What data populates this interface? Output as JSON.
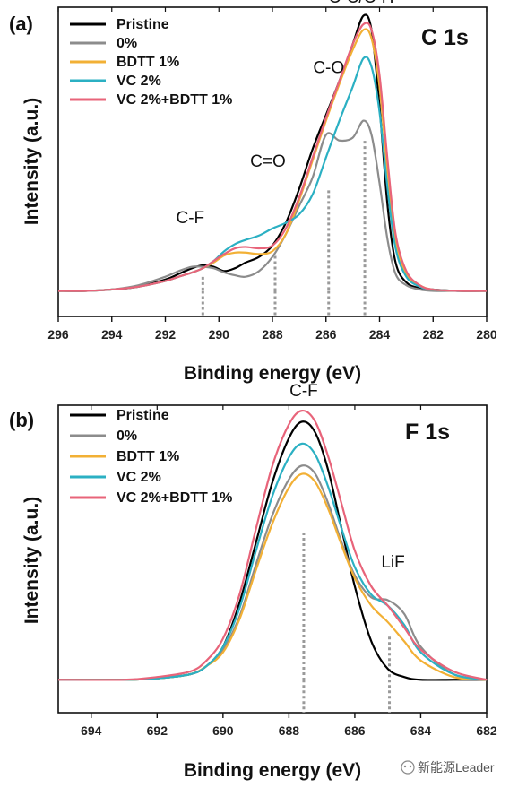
{
  "chart_data": [
    {
      "type": "line",
      "panel_label": "(a)",
      "title": "C 1s",
      "xlabel": "Binding energy (eV)",
      "ylabel": "Intensity (a.u.)",
      "xlim": [
        296,
        280
      ],
      "x_reversed": true,
      "ylim": [
        -0.09,
        1.0
      ],
      "xticks": [
        296,
        294,
        292,
        290,
        288,
        286,
        284,
        282,
        280
      ],
      "grid": false,
      "legend_position": "top-left",
      "annotations": [
        {
          "text": "C-F",
          "x": 290.6,
          "y": 0.2
        },
        {
          "text": "C=O",
          "x": 287.9,
          "y": 0.4
        },
        {
          "text": "C-O",
          "x": 285.9,
          "y": 0.73
        },
        {
          "text": "C-C/C-H",
          "x": 284.55,
          "y": 0.99
        }
      ],
      "reference_lines": [
        290.6,
        287.9,
        285.9,
        284.55
      ],
      "series": [
        {
          "name": "Pristine",
          "color": "#000000",
          "x": [
            296,
            295,
            294,
            293,
            292,
            291.5,
            291,
            290.6,
            290.2,
            289.8,
            289.4,
            289,
            288.5,
            288,
            287.5,
            287,
            286.5,
            286,
            285.5,
            285,
            284.6,
            284.3,
            284,
            283.7,
            283.4,
            283,
            282.5,
            282,
            281,
            280
          ],
          "y": [
            0,
            0,
            0.005,
            0.015,
            0.04,
            0.06,
            0.08,
            0.09,
            0.085,
            0.07,
            0.08,
            0.1,
            0.12,
            0.16,
            0.24,
            0.36,
            0.5,
            0.62,
            0.74,
            0.87,
            0.97,
            0.92,
            0.65,
            0.3,
            0.1,
            0.03,
            0.01,
            0.005,
            0,
            0
          ]
        },
        {
          "name": "0%",
          "color": "#8c8c8c",
          "x": [
            296,
            295,
            294,
            293,
            292,
            291.5,
            291,
            290.6,
            290.2,
            289.8,
            289.4,
            289,
            288.5,
            288,
            287.5,
            287,
            286.5,
            286,
            285.5,
            285,
            284.6,
            284.3,
            284,
            283.7,
            283.4,
            283,
            282.5,
            282,
            281,
            280
          ],
          "y": [
            0,
            0,
            0.005,
            0.02,
            0.05,
            0.07,
            0.085,
            0.085,
            0.08,
            0.065,
            0.055,
            0.05,
            0.07,
            0.12,
            0.2,
            0.3,
            0.4,
            0.55,
            0.53,
            0.54,
            0.6,
            0.55,
            0.38,
            0.18,
            0.06,
            0.02,
            0.005,
            0,
            0,
            0
          ]
        },
        {
          "name": "BDTT 1%",
          "color": "#f2b035",
          "x": [
            296,
            295,
            294,
            293,
            292,
            291.5,
            291,
            290.6,
            290.2,
            289.8,
            289.4,
            289,
            288.5,
            288,
            287.5,
            287,
            286.5,
            286,
            285.5,
            285,
            284.6,
            284.3,
            284,
            283.7,
            283.4,
            283,
            282.5,
            282,
            281,
            280
          ],
          "y": [
            0,
            0,
            0.005,
            0.015,
            0.035,
            0.05,
            0.065,
            0.08,
            0.1,
            0.125,
            0.135,
            0.135,
            0.13,
            0.14,
            0.2,
            0.32,
            0.46,
            0.6,
            0.73,
            0.85,
            0.92,
            0.89,
            0.72,
            0.42,
            0.18,
            0.06,
            0.02,
            0.005,
            0,
            0
          ]
        },
        {
          "name": "VC 2%",
          "color": "#2bb0c3",
          "x": [
            296,
            295,
            294,
            293,
            292,
            291.5,
            291,
            290.6,
            290.2,
            289.8,
            289.4,
            289,
            288.5,
            288,
            287.5,
            287,
            286.5,
            286,
            285.5,
            285,
            284.6,
            284.3,
            284,
            283.7,
            283.4,
            283,
            282.5,
            282,
            281,
            280
          ],
          "y": [
            0,
            0,
            0.005,
            0.015,
            0.035,
            0.05,
            0.065,
            0.08,
            0.105,
            0.14,
            0.165,
            0.18,
            0.195,
            0.22,
            0.24,
            0.27,
            0.34,
            0.47,
            0.6,
            0.72,
            0.82,
            0.79,
            0.63,
            0.36,
            0.15,
            0.05,
            0.015,
            0.005,
            0,
            0
          ]
        },
        {
          "name": "VC 2%+BDTT 1%",
          "color": "#e8647a",
          "x": [
            296,
            295,
            294,
            293,
            292,
            291.5,
            291,
            290.6,
            290.2,
            289.8,
            289.4,
            289,
            288.5,
            288,
            287.5,
            287,
            286.5,
            286,
            285.5,
            285,
            284.6,
            284.3,
            284,
            283.7,
            283.4,
            283,
            282.5,
            282,
            281,
            280
          ],
          "y": [
            0,
            0,
            0.005,
            0.015,
            0.035,
            0.05,
            0.065,
            0.08,
            0.105,
            0.13,
            0.15,
            0.155,
            0.15,
            0.16,
            0.22,
            0.33,
            0.47,
            0.61,
            0.74,
            0.87,
            0.94,
            0.92,
            0.76,
            0.46,
            0.2,
            0.07,
            0.02,
            0.005,
            0,
            0
          ]
        }
      ]
    },
    {
      "type": "line",
      "panel_label": "(b)",
      "title": "F 1s",
      "xlabel": "Binding energy (eV)",
      "ylabel": "Intensity (a.u.)",
      "xlim": [
        695,
        682
      ],
      "x_reversed": true,
      "ylim": [
        -0.12,
        1.0
      ],
      "xticks": [
        694,
        692,
        690,
        688,
        686,
        684,
        682
      ],
      "grid": false,
      "legend_position": "top-left",
      "annotations": [
        {
          "text": "C-F",
          "x": 687.55,
          "y": 1.0
        },
        {
          "text": "LiF",
          "x": 684.95,
          "y": 0.37
        }
      ],
      "reference_lines": [
        687.55,
        684.95
      ],
      "series": [
        {
          "name": "Pristine",
          "color": "#000000",
          "x": [
            695,
            693,
            692,
            691,
            690.5,
            690,
            689.5,
            689,
            688.5,
            688,
            687.6,
            687.2,
            686.8,
            686.4,
            686,
            685.5,
            685,
            684.5,
            684,
            683,
            682
          ],
          "y": [
            0,
            0,
            0.005,
            0.02,
            0.05,
            0.12,
            0.28,
            0.5,
            0.72,
            0.88,
            0.94,
            0.9,
            0.76,
            0.55,
            0.34,
            0.14,
            0.04,
            0.01,
            0,
            0,
            0
          ]
        },
        {
          "name": "0%",
          "color": "#8c8c8c",
          "x": [
            695,
            693,
            692,
            691,
            690.5,
            690,
            689.5,
            689,
            688.5,
            688,
            687.6,
            687.2,
            686.8,
            686.4,
            686,
            685.5,
            685,
            684.5,
            684,
            683,
            682
          ],
          "y": [
            0,
            0,
            0.005,
            0.02,
            0.05,
            0.11,
            0.23,
            0.42,
            0.6,
            0.73,
            0.78,
            0.75,
            0.64,
            0.5,
            0.38,
            0.3,
            0.29,
            0.24,
            0.12,
            0.02,
            0
          ]
        },
        {
          "name": "BDTT 1%",
          "color": "#f2b035",
          "x": [
            695,
            693,
            692,
            691,
            690.5,
            690,
            689.5,
            689,
            688.5,
            688,
            687.6,
            687.2,
            686.8,
            686.4,
            686,
            685.5,
            685,
            684.5,
            684,
            683,
            682
          ],
          "y": [
            0,
            0,
            0.005,
            0.02,
            0.05,
            0.1,
            0.22,
            0.4,
            0.57,
            0.7,
            0.75,
            0.72,
            0.62,
            0.49,
            0.37,
            0.27,
            0.21,
            0.14,
            0.07,
            0.01,
            0
          ]
        },
        {
          "name": "VC 2%",
          "color": "#2bb0c3",
          "x": [
            695,
            693,
            692,
            691,
            690.5,
            690,
            689.5,
            689,
            688.5,
            688,
            687.6,
            687.2,
            686.8,
            686.4,
            686,
            685.5,
            685,
            684.5,
            684,
            683,
            682
          ],
          "y": [
            0,
            0,
            0.005,
            0.02,
            0.05,
            0.12,
            0.26,
            0.47,
            0.67,
            0.81,
            0.86,
            0.82,
            0.7,
            0.55,
            0.41,
            0.31,
            0.27,
            0.2,
            0.1,
            0.02,
            0
          ]
        },
        {
          "name": "VC 2%+BDTT 1%",
          "color": "#e8647a",
          "x": [
            695,
            693,
            692,
            691,
            690.5,
            690,
            689.5,
            689,
            688.5,
            688,
            687.6,
            687.2,
            686.8,
            686.4,
            686,
            685.5,
            685,
            684.5,
            684,
            683,
            682
          ],
          "y": [
            0,
            0,
            0.01,
            0.03,
            0.07,
            0.15,
            0.31,
            0.55,
            0.78,
            0.93,
            0.98,
            0.94,
            0.81,
            0.64,
            0.47,
            0.34,
            0.27,
            0.19,
            0.11,
            0.03,
            0
          ]
        }
      ]
    }
  ],
  "watermark": "新能源Leader"
}
